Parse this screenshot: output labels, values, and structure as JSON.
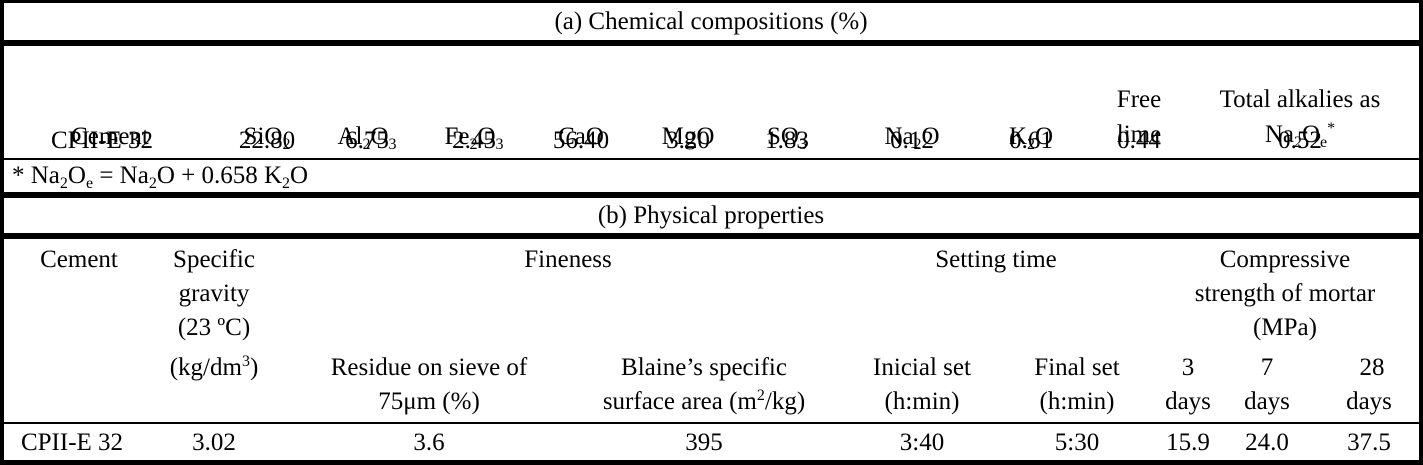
{
  "section_a": {
    "title": "(a) Chemical compositions (%)",
    "headers": {
      "cement": "Cement",
      "sio2": "SiO",
      "sio2_sub": "2",
      "al2o3_a": "Al",
      "al2o3_sub1": "2",
      "al2o3_b": "O",
      "al2o3_sub2": "3",
      "fe2o3_a": "Fe",
      "fe2o3_sub1": "2",
      "fe2o3_b": "O",
      "fe2o3_sub2": "3",
      "cao": "CaO",
      "mgo": "MgO",
      "so3": "SO",
      "so3_sub": "3",
      "na2o_a": "Na",
      "na2o_sub": "2",
      "na2o_b": "O",
      "k2o_a": "K",
      "k2o_sub": "2",
      "k2o_b": "O",
      "free_line1": "Free",
      "free_line2": "lime",
      "total_line1": "Total alkalies as",
      "total_na": "Na",
      "total_sub2": "2",
      "total_o": "O",
      "total_sub_e": "e",
      "total_star": "*"
    },
    "row": {
      "cement": "CPII-E 32",
      "sio2": "22.80",
      "al2o3": "6.75",
      "fe2o3": "2.45",
      "cao": "56.40",
      "mgo": "3.20",
      "so3": "1.83",
      "na2o": "0.12",
      "k2o": "0.61",
      "free_lime": "0.44",
      "total_alkalies": "0.52"
    },
    "footnote": {
      "p1": "* Na",
      "s1": "2",
      "p2": "O",
      "s2": "e",
      "p3": " = Na",
      "s3": "2",
      "p4": "O + 0.658 K",
      "s4": "2",
      "p5": "O"
    }
  },
  "section_b": {
    "title": "(b) Physical properties",
    "headers": {
      "cement": "Cement",
      "sg_line1": "Specific",
      "sg_line2": "gravity",
      "sg_line3": "(23 ºC)",
      "fineness": "Fineness",
      "setting": "Setting time",
      "cs_line1": "Compressive",
      "cs_line2": "strength of mortar",
      "cs_line3": "(MPa)",
      "sg_unit_a": "(kg/dm",
      "sg_unit_sup": "3",
      "sg_unit_b": ")",
      "residue_line1": "Residue on sieve of",
      "residue_line2": "75μm (%)",
      "blaine_line1": "Blaine’s specific",
      "blaine_line2a": "surface area (m",
      "blaine_line2sup": "2",
      "blaine_line2b": "/kg)",
      "initial_line1": "Inicial set",
      "initial_line2": "(h:min)",
      "final_line1": "Final set",
      "final_line2": "(h:min)",
      "d3_line1": "3",
      "d3_line2": "days",
      "d7_line1": "7",
      "d7_line2": "days",
      "d28_line1": "28",
      "d28_line2": "days"
    },
    "row": {
      "cement": "CPII-E 32",
      "specific_gravity": "3.02",
      "residue": "3.6",
      "blaine": "395",
      "initial_set": "3:40",
      "final_set": "5:30",
      "cs_3d": "15.9",
      "cs_7d": "24.0",
      "cs_28d": "37.5"
    }
  }
}
